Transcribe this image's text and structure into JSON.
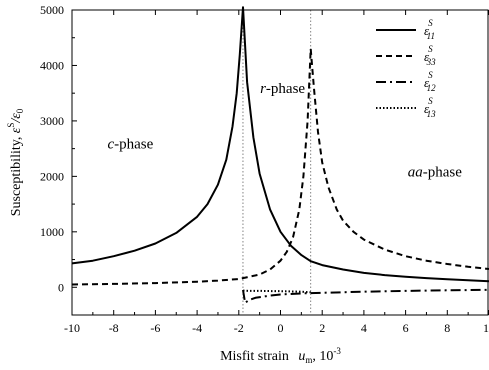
{
  "chart_data": {
    "type": "line",
    "xlabel": "Misfit strain",
    "xlabel_symbol": "u",
    "xlabel_sub": "m",
    "xlabel_unit": ", 10",
    "xlabel_exp": "-3",
    "ylabel": "Susceptibility, ",
    "ylabel_eps": "ε",
    "ylabel_sup": "S",
    "ylabel_div": "/ε",
    "ylabel_zero": "0",
    "xlim": [
      -10,
      10
    ],
    "ylim": [
      -500,
      5000
    ],
    "x_ticks": [
      -10,
      -8,
      -6,
      -4,
      -2,
      0,
      2,
      4,
      6,
      8,
      10
    ],
    "y_ticks": [
      0,
      1000,
      2000,
      3000,
      4000,
      5000
    ],
    "phase_boundaries": [
      -1.8,
      1.45
    ],
    "annotations": [
      {
        "text": "c-phase",
        "italic_part": "c",
        "rest": "-phase",
        "x": -7.2,
        "y": 2500
      },
      {
        "text": "r-phase",
        "italic_part": "r",
        "rest": "-phase",
        "x": 0.1,
        "y": 3500
      },
      {
        "text": "aa-phase",
        "italic_part": "aa",
        "rest": "-phase",
        "x": 7.4,
        "y": 2000
      }
    ],
    "legend_position": "top-right",
    "series": [
      {
        "name": "ε11",
        "sym": "ε",
        "sub": "11",
        "sup": "S",
        "dash": "solid",
        "x": [
          -10,
          -9,
          -8,
          -7,
          -6,
          -5,
          -4,
          -3.5,
          -3,
          -2.6,
          -2.3,
          -2.1,
          -1.95,
          -1.8,
          -1.6,
          -1.3,
          -1,
          -0.5,
          0,
          0.5,
          1,
          1.45,
          2,
          3,
          4,
          5,
          6,
          7,
          8,
          9,
          10
        ],
        "y": [
          430,
          480,
          560,
          660,
          790,
          980,
          1270,
          1500,
          1850,
          2300,
          2900,
          3500,
          4200,
          5050,
          3700,
          2700,
          2050,
          1400,
          1000,
          750,
          580,
          470,
          400,
          320,
          260,
          220,
          190,
          165,
          145,
          125,
          110
        ]
      },
      {
        "name": "ε33",
        "sym": "ε",
        "sub": "33",
        "sup": "S",
        "dash": "dashed",
        "x": [
          -10,
          -8,
          -6,
          -4,
          -3,
          -2,
          -1.8,
          -1,
          -0.5,
          0,
          0.3,
          0.6,
          0.9,
          1.1,
          1.3,
          1.45,
          1.6,
          1.8,
          2,
          2.3,
          2.7,
          3,
          3.5,
          4,
          5,
          6,
          7,
          8,
          9,
          10
        ],
        "y": [
          50,
          60,
          75,
          100,
          120,
          150,
          165,
          230,
          320,
          480,
          640,
          900,
          1400,
          2000,
          3000,
          4300,
          3600,
          2800,
          2250,
          1800,
          1400,
          1200,
          1000,
          860,
          680,
          560,
          480,
          420,
          370,
          330
        ]
      },
      {
        "name": "ε12",
        "sym": "ε",
        "sub": "12",
        "sup": "S",
        "dash": "dashdot",
        "x": [
          -1.8,
          -1.7,
          -1.5,
          -1.2,
          -0.5,
          0,
          1,
          2,
          4,
          6,
          8,
          10
        ],
        "y": [
          -50,
          -280,
          -230,
          -190,
          -150,
          -130,
          -110,
          -100,
          -80,
          -65,
          -55,
          -45
        ]
      },
      {
        "name": "ε13",
        "sym": "ε",
        "sub": "13",
        "sup": "S",
        "dash": "dotted",
        "x": [
          -1.8,
          -1.5,
          -1,
          0,
          1,
          1.45
        ],
        "y": [
          -60,
          -65,
          -65,
          -70,
          -80,
          -90
        ]
      }
    ]
  }
}
